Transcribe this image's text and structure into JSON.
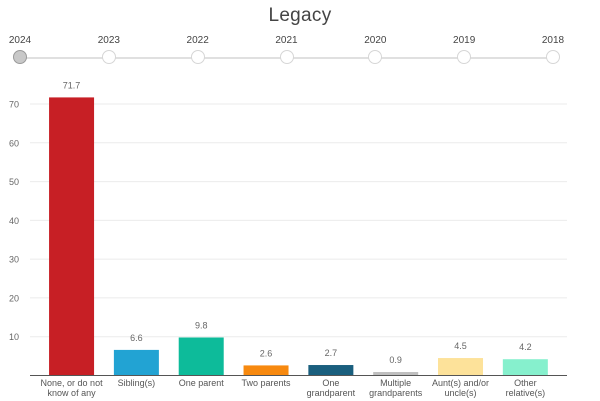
{
  "title": "Legacy",
  "timeline": {
    "years": [
      "2024",
      "2023",
      "2022",
      "2021",
      "2020",
      "2019",
      "2018"
    ],
    "selected": "2024"
  },
  "chart_data": {
    "type": "bar",
    "categories": [
      [
        "None, or do not",
        "know of any"
      ],
      [
        "Sibling(s)"
      ],
      [
        "One parent"
      ],
      [
        "Two parents"
      ],
      [
        "One",
        "grandparent"
      ],
      [
        "Multiple",
        "grandparents"
      ],
      [
        "Aunt(s) and/or",
        "uncle(s)"
      ],
      [
        "Other",
        "relative(s)"
      ]
    ],
    "values": [
      71.7,
      6.6,
      9.8,
      2.6,
      2.7,
      0.9,
      4.5,
      4.2
    ],
    "value_labels": [
      "71.7",
      "6.6",
      "9.8",
      "2.6",
      "2.7",
      "0.9",
      "4.5",
      "4.2"
    ],
    "colors": [
      "#c71f25",
      "#22a3d3",
      "#0dbb9a",
      "#f7890f",
      "#1a5f7e",
      "#bfbfbf",
      "#fde29a",
      "#86f0cd"
    ],
    "ylim": [
      0,
      70
    ],
    "yticks": [
      10,
      20,
      30,
      40,
      50,
      60,
      70
    ],
    "grid": true
  }
}
